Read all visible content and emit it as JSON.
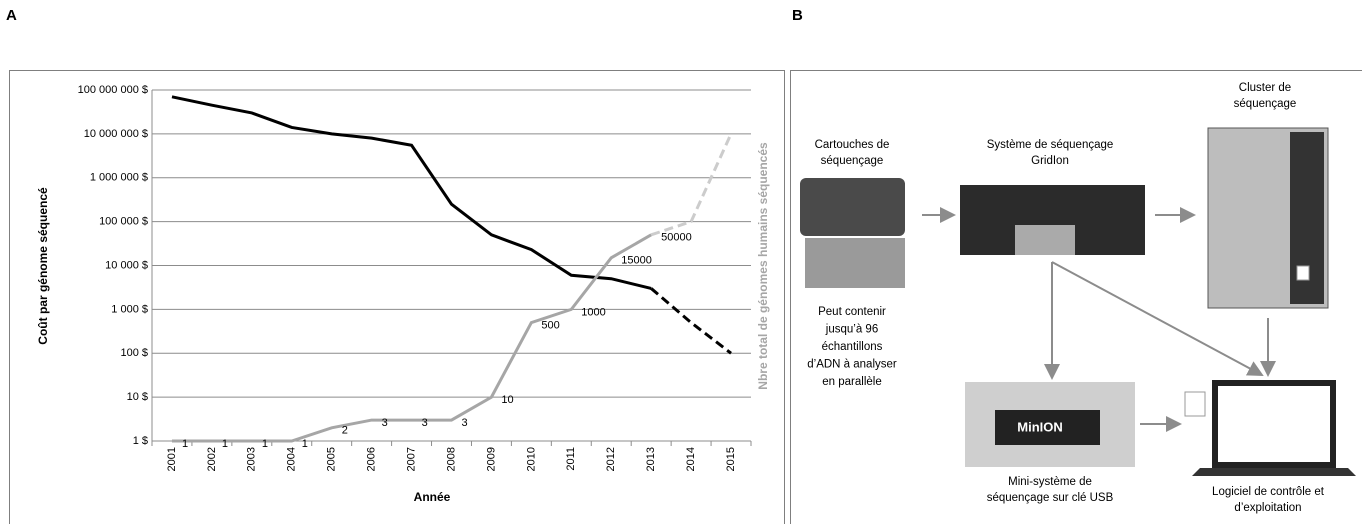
{
  "panels": {
    "a": "A",
    "b": "B"
  },
  "chart_data": {
    "type": "line",
    "y_label": "Coût par génome séquencé",
    "y2_label": "Nbre total de génomes humains séquencés",
    "x_label": "Année",
    "categories": [
      "2001",
      "2002",
      "2003",
      "2004",
      "2005",
      "2006",
      "2007",
      "2008",
      "2009",
      "2010",
      "2011",
      "2012",
      "2013",
      "2014",
      "2015"
    ],
    "log": true,
    "grid": true,
    "ylim": [
      1,
      100000000
    ],
    "yticks": [
      {
        "value": 1,
        "label": "1 $"
      },
      {
        "value": 10,
        "label": "10 $"
      },
      {
        "value": 100,
        "label": "100 $"
      },
      {
        "value": 1000,
        "label": "1 000 $"
      },
      {
        "value": 10000,
        "label": "10 000 $"
      },
      {
        "value": 100000,
        "label": "100 000 $"
      },
      {
        "value": 1000000,
        "label": "1 000 000 $"
      },
      {
        "value": 10000000,
        "label": "10 000 000 $"
      },
      {
        "value": 100000000,
        "label": "100 000 000 $"
      }
    ],
    "series": [
      {
        "color": "#000000",
        "dashed": false,
        "values": [
          70000000,
          45000000,
          30000000,
          14000000,
          10000000,
          8000000,
          5500000,
          250000,
          50000,
          23000,
          6000,
          5000,
          3000,
          null,
          null
        ]
      },
      {
        "color": "#000000",
        "dashed": true,
        "values": [
          null,
          null,
          null,
          null,
          null,
          null,
          null,
          null,
          null,
          null,
          null,
          null,
          3000,
          500,
          100
        ]
      },
      {
        "color": "#a6a6a6",
        "dashed": false,
        "show_values": true,
        "values": [
          1,
          1,
          1,
          1,
          2,
          3,
          3,
          3,
          10,
          500,
          1000,
          15000,
          50000,
          null,
          null
        ]
      },
      {
        "color": "#cccccc",
        "dashed": true,
        "values": [
          null,
          null,
          null,
          null,
          null,
          null,
          null,
          null,
          null,
          null,
          null,
          null,
          50000,
          100000,
          10000000
        ]
      }
    ]
  },
  "diagram": {
    "cartridge": {
      "title": [
        "Cartouches de",
        "séquençage"
      ],
      "caption": [
        "Peut contenir",
        "jusqu’à 96",
        "échantillons",
        "d’ADN à analyser",
        "en parallèle"
      ]
    },
    "gridion": {
      "title": [
        "Système de séquençage",
        "GridIon"
      ]
    },
    "cluster": {
      "title": [
        "Cluster de",
        "séquençage"
      ]
    },
    "minion": {
      "label": "MinION",
      "title": [
        "Mini-système de",
        "séquençage sur clé USB"
      ]
    },
    "software": {
      "title": [
        "Logiciel de contrôle et",
        "d’exploitation"
      ]
    }
  }
}
